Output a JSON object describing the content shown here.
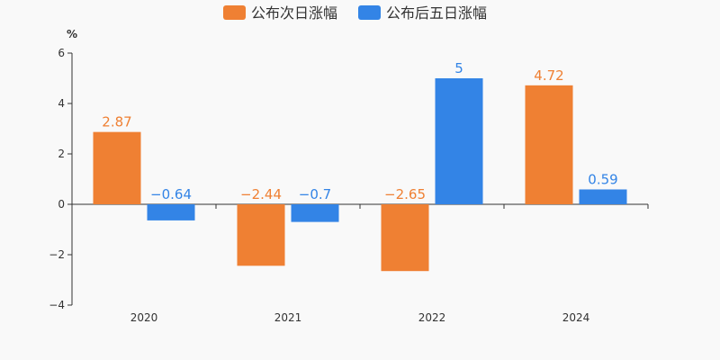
{
  "chart_data": {
    "type": "bar",
    "categories": [
      "2020",
      "2021",
      "2022",
      "2024"
    ],
    "series": [
      {
        "name": "公布次日涨幅",
        "color": "#ef8033",
        "values": [
          2.87,
          -2.44,
          -2.65,
          4.72
        ],
        "labels": [
          "2.87",
          "−2.44",
          "−2.65",
          "4.72"
        ]
      },
      {
        "name": "公布后五日涨幅",
        "color": "#3384e6",
        "values": [
          -0.64,
          -0.7,
          5,
          0.59
        ],
        "labels": [
          "−0.64",
          "−0.7",
          "5",
          "0.59"
        ]
      }
    ],
    "y_unit": "%",
    "ylim": [
      -4,
      6
    ],
    "yticks": [
      -4,
      -2,
      0,
      2,
      4,
      6
    ],
    "ytick_labels": [
      "−4",
      "−2",
      "0",
      "2",
      "4",
      "6"
    ],
    "grid": false,
    "legend_position": "top-center"
  }
}
